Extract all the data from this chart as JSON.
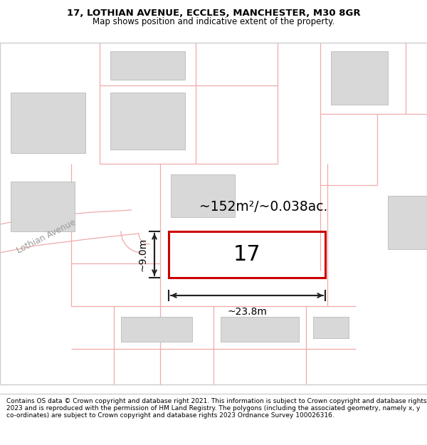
{
  "title_line1": "17, LOTHIAN AVENUE, ECCLES, MANCHESTER, M30 8GR",
  "title_line2": "Map shows position and indicative extent of the property.",
  "footer_text": "Contains OS data © Crown copyright and database right 2021. This information is subject to Crown copyright and database rights 2023 and is reproduced with the permission of HM Land Registry. The polygons (including the associated geometry, namely x, y co-ordinates) are subject to Crown copyright and database rights 2023 Ordnance Survey 100026316.",
  "map_bg": "#f5f5f5",
  "building_fill": "#d8d8d8",
  "building_edge": "#bbbbbb",
  "road_line_color": "#f0aaaa",
  "subject_rect_color": "#cc0000",
  "subject_label": "17",
  "area_label": "~152m²/~0.038ac.",
  "dim_width_label": "~23.8m",
  "dim_height_label": "~9.0m",
  "street_label": "Lothian Avenue",
  "title_fontsize": 9.5,
  "subtitle_fontsize": 8.5,
  "footer_fontsize": 6.5
}
